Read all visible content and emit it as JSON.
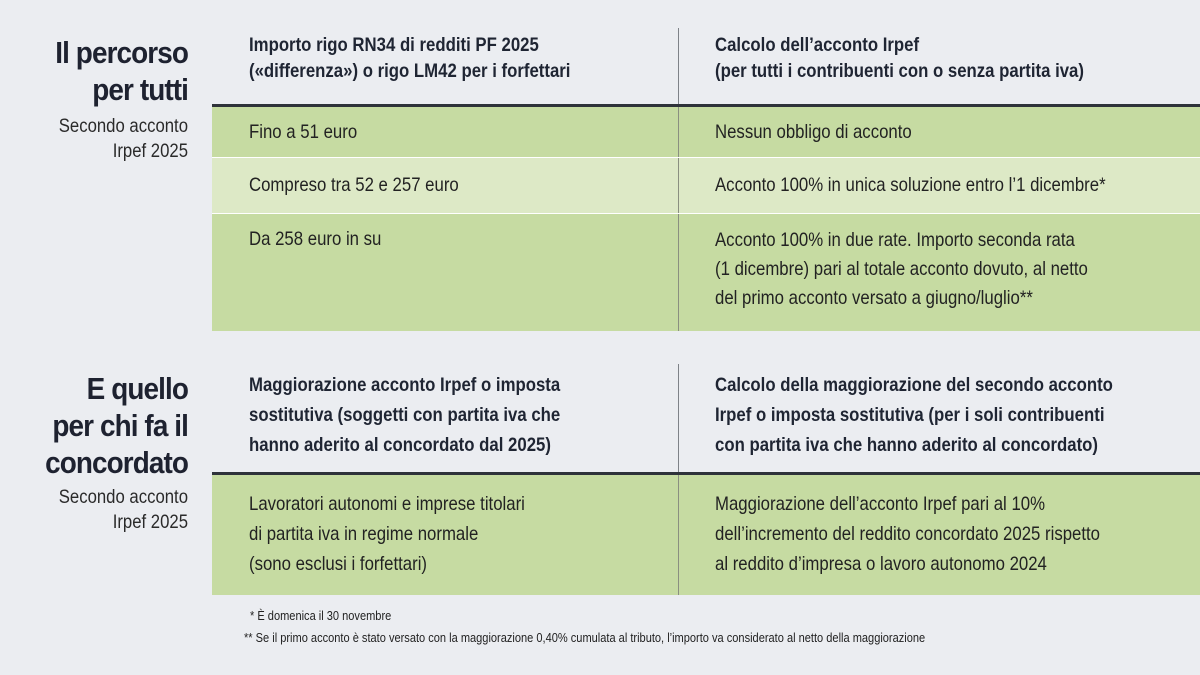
{
  "section1": {
    "title_line1": "Il percorso",
    "title_line2": "per tutti",
    "subtitle_line1": "Secondo acconto",
    "subtitle_line2": "Irpef 2025",
    "header": {
      "col1_line1": "Importo rigo RN34 di redditi PF 2025",
      "col1_line2": "(«differenza») o rigo LM42 per i forfettari",
      "col2_line1": "Calcolo dell’acconto Irpef",
      "col2_line2": "(per tutti i contribuenti con o senza partita iva)"
    },
    "rows": [
      {
        "col1": [
          "Fino a 51 euro"
        ],
        "col2": [
          "Nessun obbligo di acconto"
        ]
      },
      {
        "col1": [
          "Compreso tra 52 e 257 euro"
        ],
        "col2": [
          "Acconto 100% in unica soluzione entro l’1 dicembre*"
        ]
      },
      {
        "col1": [
          "Da 258 euro in su"
        ],
        "col2": [
          "Acconto 100% in due rate. Importo seconda rata",
          "(1 dicembre) pari al totale acconto dovuto, al netto",
          "del primo acconto versato a giugno/luglio**"
        ]
      }
    ]
  },
  "section2": {
    "title_line1": "E quello",
    "title_line2": "per chi fa il",
    "title_line3": "concordato",
    "subtitle_line1": "Secondo acconto",
    "subtitle_line2": "Irpef 2025",
    "header": {
      "col1_line1": "Maggiorazione acconto Irpef o imposta",
      "col1_line2": "sostitutiva (soggetti con partita iva che",
      "col1_line3": "hanno aderito al concordato dal 2025)",
      "col2_line1": "Calcolo della maggiorazione del secondo acconto",
      "col2_line2": "Irpef o imposta sostitutiva (per i soli contribuenti",
      "col2_line3": "con partita iva che hanno aderito al concordato)"
    },
    "rows": [
      {
        "col1": [
          "Lavoratori autonomi e imprese titolari",
          "di partita iva in regime normale",
          "(sono esclusi i forfettari)"
        ],
        "col2": [
          "Maggiorazione dell’acconto Irpef pari al 10%",
          "dell’incremento del reddito concordato 2025 rispetto",
          "al reddito d’impresa o lavoro autonomo 2024"
        ]
      }
    ]
  },
  "notes": [
    "* È domenica il 30 novembre",
    "** Se il primo acconto è stato versato con la maggiorazione 0,40% cumulata al tributo, l’importo va considerato al netto della maggiorazione"
  ],
  "colors": {
    "background": "#ebedf1",
    "green_dark": "#c6dba2",
    "green_light": "#dde9c6"
  }
}
